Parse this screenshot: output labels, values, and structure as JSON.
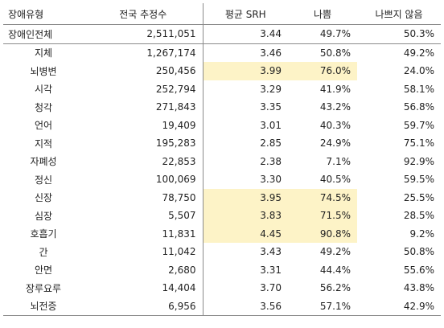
{
  "table": {
    "headers": [
      "장애유형",
      "전국 추정수",
      "평균 SRH",
      "나쁨",
      "나쁘지 않음"
    ],
    "rows": [
      {
        "type": "장애인전체",
        "count": "2,511,051",
        "srh": "3.44",
        "bad": "49.7%",
        "not_bad": "50.3%",
        "highlight": false
      },
      {
        "type": "지체",
        "count": "1,267,174",
        "srh": "3.46",
        "bad": "50.8%",
        "not_bad": "49.2%",
        "highlight": false
      },
      {
        "type": "뇌병변",
        "count": "250,456",
        "srh": "3.99",
        "bad": "76.0%",
        "not_bad": "24.0%",
        "highlight": true
      },
      {
        "type": "시각",
        "count": "252,794",
        "srh": "3.29",
        "bad": "41.9%",
        "not_bad": "58.1%",
        "highlight": false
      },
      {
        "type": "청각",
        "count": "271,843",
        "srh": "3.35",
        "bad": "43.2%",
        "not_bad": "56.8%",
        "highlight": false
      },
      {
        "type": "언어",
        "count": "19,409",
        "srh": "3.01",
        "bad": "40.3%",
        "not_bad": "59.7%",
        "highlight": false
      },
      {
        "type": "지적",
        "count": "195,283",
        "srh": "2.85",
        "bad": "24.9%",
        "not_bad": "75.1%",
        "highlight": false
      },
      {
        "type": "자폐성",
        "count": "22,853",
        "srh": "2.38",
        "bad": "7.1%",
        "not_bad": "92.9%",
        "highlight": false
      },
      {
        "type": "정신",
        "count": "100,069",
        "srh": "3.30",
        "bad": "40.5%",
        "not_bad": "59.5%",
        "highlight": false
      },
      {
        "type": "신장",
        "count": "78,750",
        "srh": "3.95",
        "bad": "74.5%",
        "not_bad": "25.5%",
        "highlight": true
      },
      {
        "type": "심장",
        "count": "5,507",
        "srh": "3.83",
        "bad": "71.5%",
        "not_bad": "28.5%",
        "highlight": true
      },
      {
        "type": "호흡기",
        "count": "11,831",
        "srh": "4.45",
        "bad": "90.8%",
        "not_bad": "9.2%",
        "highlight": true
      },
      {
        "type": "간",
        "count": "11,042",
        "srh": "3.43",
        "bad": "49.2%",
        "not_bad": "50.8%",
        "highlight": false
      },
      {
        "type": "안면",
        "count": "2,680",
        "srh": "3.31",
        "bad": "44.4%",
        "not_bad": "55.6%",
        "highlight": false
      },
      {
        "type": "장루요루",
        "count": "14,404",
        "srh": "3.70",
        "bad": "56.2%",
        "not_bad": "43.8%",
        "highlight": false
      },
      {
        "type": "뇌전증",
        "count": "6,956",
        "srh": "3.56",
        "bad": "57.1%",
        "not_bad": "42.9%",
        "highlight": false
      }
    ]
  },
  "colors": {
    "highlight": "#fdf3c7",
    "rule": "#8a8a8a"
  }
}
